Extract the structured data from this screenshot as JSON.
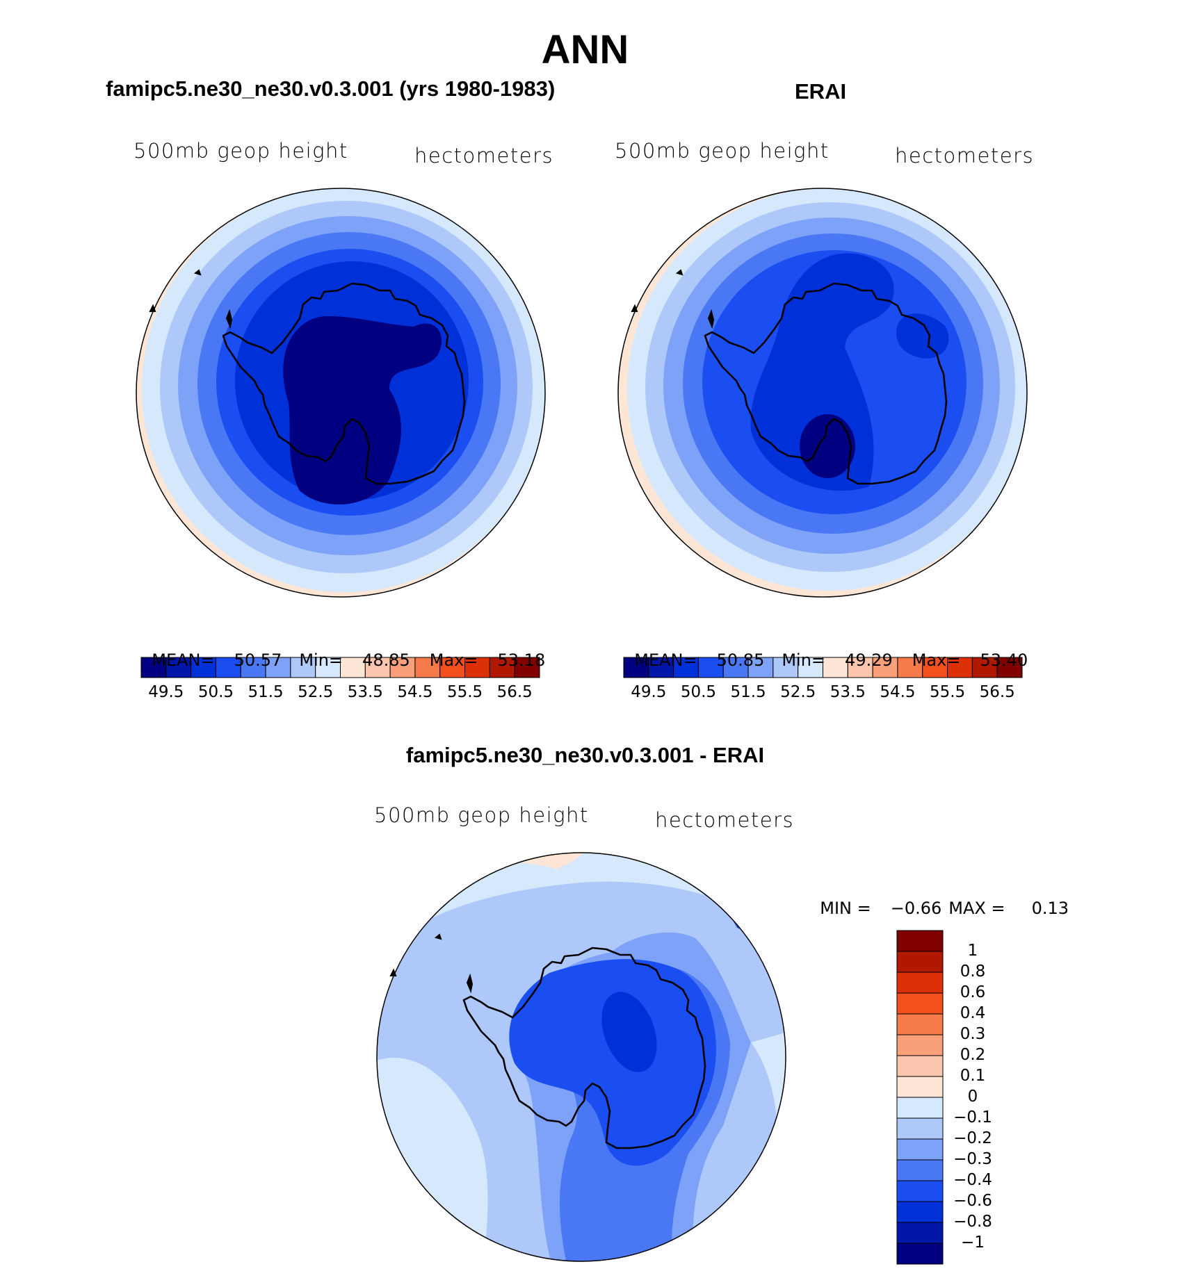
{
  "title": "ANN",
  "panels": [
    {
      "subtitle": "famipc5.ne30_ne30.v0.3.001 (yrs 1980-1983)",
      "variable": "500mb geop height",
      "units": "hectometers",
      "stats": {
        "mean_label": "MEAN=",
        "mean": "50.57",
        "min_label": "Min=",
        "min": "48.85",
        "max_label": "Max=",
        "max": "53.18"
      }
    },
    {
      "subtitle": "ERAI",
      "variable": "500mb geop height",
      "units": "hectometers",
      "stats": {
        "mean_label": "MEAN=",
        "mean": "50.85",
        "min_label": "Min=",
        "min": "49.29",
        "max_label": "Max=",
        "max": "53.40"
      }
    },
    {
      "subtitle": "famipc5.ne30_ne30.v0.3.001 - ERAI",
      "variable": "500mb geop height",
      "units": "hectometers",
      "stats": {
        "min_label": "MIN =",
        "min": "−0.66",
        "max_label": "MAX =",
        "max": "0.13"
      }
    }
  ],
  "colorbar_main": {
    "colors": [
      "#000080",
      "#0016a8",
      "#0030d8",
      "#1a4ef0",
      "#4a78f4",
      "#7ea2f8",
      "#aec8fa",
      "#d6e8fc",
      "#fde6d6",
      "#fcc6ae",
      "#f9a07a",
      "#f77a4a",
      "#f4501e",
      "#dc3008",
      "#b01800",
      "#800000"
    ],
    "tick_labels": [
      "49.5",
      "50.5",
      "51.5",
      "52.5",
      "53.5",
      "54.5",
      "55.5",
      "56.5"
    ]
  },
  "colorbar_diff": {
    "colors": [
      "#000080",
      "#0016a8",
      "#0030d8",
      "#1a4ef0",
      "#4a78f4",
      "#7ea2f8",
      "#aec8fa",
      "#d6e8fc",
      "#fde6d6",
      "#fcc6ae",
      "#f9a07a",
      "#f77a4a",
      "#f4501e",
      "#dc3008",
      "#b01800",
      "#800000"
    ],
    "tick_labels": [
      "1",
      "0.8",
      "0.6",
      "0.4",
      "0.3",
      "0.2",
      "0.1",
      "0",
      "−0.1",
      "−0.2",
      "−0.3",
      "−0.4",
      "−0.6",
      "−0.8",
      "−1"
    ]
  }
}
